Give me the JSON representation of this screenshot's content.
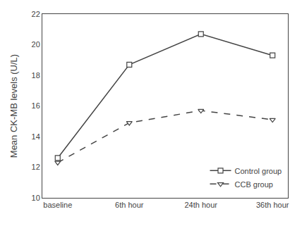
{
  "chart_data": {
    "type": "line",
    "categories": [
      "baseline",
      "6th hour",
      "24th hour",
      "36th hour"
    ],
    "series": [
      {
        "name": "Control group",
        "color": "#444444",
        "values": [
          12.6,
          18.7,
          20.7,
          19.3
        ],
        "marker": "square",
        "line_style": "solid"
      },
      {
        "name": "CCB group",
        "color": "#444444",
        "values": [
          12.3,
          14.9,
          15.7,
          15.1
        ],
        "marker": "triangle-down",
        "line_style": "dashed"
      }
    ],
    "ylabel": "Mean CK-MB levels (U/L)",
    "ylim": [
      10,
      22
    ],
    "yticks": [
      10,
      12,
      14,
      16,
      18,
      20,
      22
    ],
    "grid": false,
    "legend": "lower right"
  }
}
